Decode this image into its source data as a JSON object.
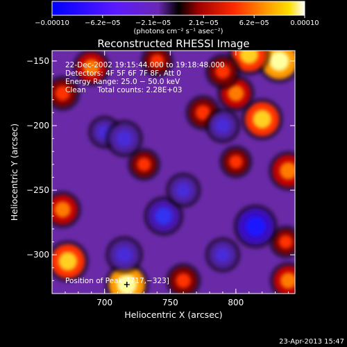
{
  "chart_data": {
    "type": "heatmap",
    "title": "Reconstructed RHESSI Image",
    "xlabel": "Heliocentric X (arcsec)",
    "ylabel": "Heliocentric Y (arcsec)",
    "xlim": [
      660,
      845
    ],
    "ylim": [
      -330,
      -142
    ],
    "x_ticks": [
      700,
      750,
      800
    ],
    "x_tick_labels": [
      "700",
      "750",
      "800"
    ],
    "y_ticks": [
      -150,
      -200,
      -250,
      -300
    ],
    "y_tick_labels": [
      "−150",
      "−200",
      "−250",
      "−300"
    ],
    "colorbar": {
      "tick_labels": [
        "−0.00010",
        "−6.2e−05",
        "−2.1e−05",
        "2.1e−05",
        "6.2e−05",
        "0.00010"
      ],
      "range": [
        -0.0001,
        0.0001
      ],
      "units": "(photons cm⁻² s⁻¹ asec⁻²)",
      "colormap": "blue-purple-black-red-orange-yellow-white"
    },
    "peak": {
      "x": 717,
      "y": -323
    },
    "annotations": [
      "22-Dec-2002 19:15:44.000 to 19:18:48.000",
      "Detectors: 4F 5F 6F 7F 8F, Att 0",
      "Energy Range: 25.0 − 50.0 keV",
      "Clean     Total counts: 2.28E+03",
      "Position of Peak: [717,−323]"
    ],
    "field_sources": [
      {
        "x": 833,
        "y": -150,
        "value": 0.0001
      },
      {
        "x": 810,
        "y": -145,
        "value": 9e-05
      },
      {
        "x": 820,
        "y": -195,
        "value": 9e-05
      },
      {
        "x": 800,
        "y": -175,
        "value": 7e-05
      },
      {
        "x": 840,
        "y": -235,
        "value": 8e-05
      },
      {
        "x": 775,
        "y": -190,
        "value": 6e-05
      },
      {
        "x": 790,
        "y": -158,
        "value": 6e-05
      },
      {
        "x": 740,
        "y": -150,
        "value": 5e-05
      },
      {
        "x": 690,
        "y": -155,
        "value": 7e-05
      },
      {
        "x": 668,
        "y": -175,
        "value": 6e-05
      },
      {
        "x": 668,
        "y": -265,
        "value": 7e-05
      },
      {
        "x": 672,
        "y": -305,
        "value": 9e-05
      },
      {
        "x": 717,
        "y": -323,
        "value": 0.0001
      },
      {
        "x": 760,
        "y": -320,
        "value": 6e-05
      },
      {
        "x": 840,
        "y": -320,
        "value": 7e-05
      },
      {
        "x": 838,
        "y": -290,
        "value": 5e-05
      },
      {
        "x": 800,
        "y": -228,
        "value": 5e-05
      },
      {
        "x": 730,
        "y": -230,
        "value": 5e-05
      },
      {
        "x": 700,
        "y": -205,
        "value": -5e-05
      },
      {
        "x": 715,
        "y": -210,
        "value": -7e-05
      },
      {
        "x": 790,
        "y": -200,
        "value": -6e-05
      },
      {
        "x": 745,
        "y": -270,
        "value": -8e-05
      },
      {
        "x": 760,
        "y": -250,
        "value": -6e-05
      },
      {
        "x": 715,
        "y": -300,
        "value": -7e-05
      },
      {
        "x": 815,
        "y": -278,
        "value": -0.0001
      },
      {
        "x": 790,
        "y": -300,
        "value": -6e-05
      }
    ]
  },
  "timestamp": "23-Apr-2013 15:47"
}
